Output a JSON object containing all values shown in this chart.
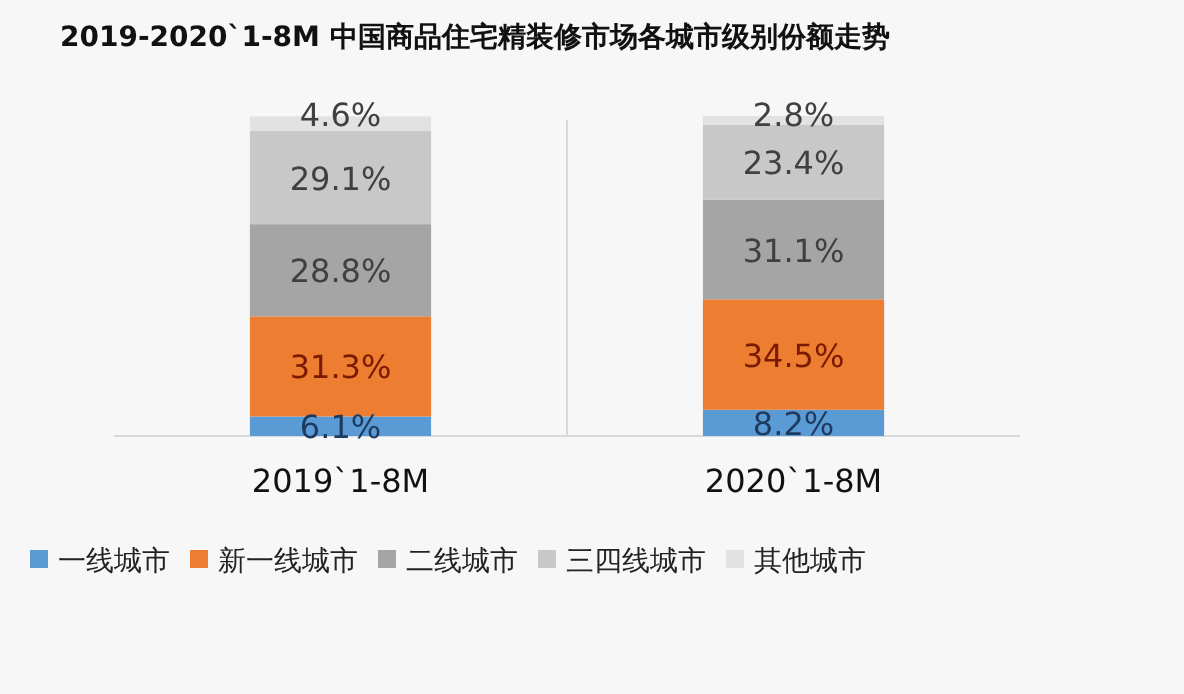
{
  "chart_data": {
    "type": "bar",
    "stacked": true,
    "title": "2019-2020`1-8M 中国商品住宅精装修市场各城市级别份额走势",
    "categories": [
      "2019`1-8M",
      "2020`1-8M"
    ],
    "legend": "bottom",
    "tick_labels": "x",
    "series": [
      {
        "name": "一线城市",
        "color": "#5b9bd5",
        "values": [
          6.1,
          8.2
        ],
        "value_labels": [
          "6.1%",
          "8.2%"
        ]
      },
      {
        "name": "新一线城市",
        "color": "#ed7d31",
        "values": [
          31.3,
          34.5
        ],
        "value_labels": [
          "31.3%",
          "34.5%"
        ]
      },
      {
        "name": "二线城市",
        "color": "#a5a5a5",
        "values": [
          28.8,
          31.1
        ],
        "value_labels": [
          "28.8%",
          "31.1%"
        ]
      },
      {
        "name": "三四线城市",
        "color": "#c8c8c8",
        "values": [
          29.1,
          23.4
        ],
        "value_labels": [
          "29.1%",
          "23.4%"
        ]
      },
      {
        "name": "其他城市",
        "color": "#e2e2e2",
        "values": [
          4.6,
          2.8
        ],
        "value_labels": [
          "4.6%",
          "2.8%"
        ]
      }
    ]
  }
}
